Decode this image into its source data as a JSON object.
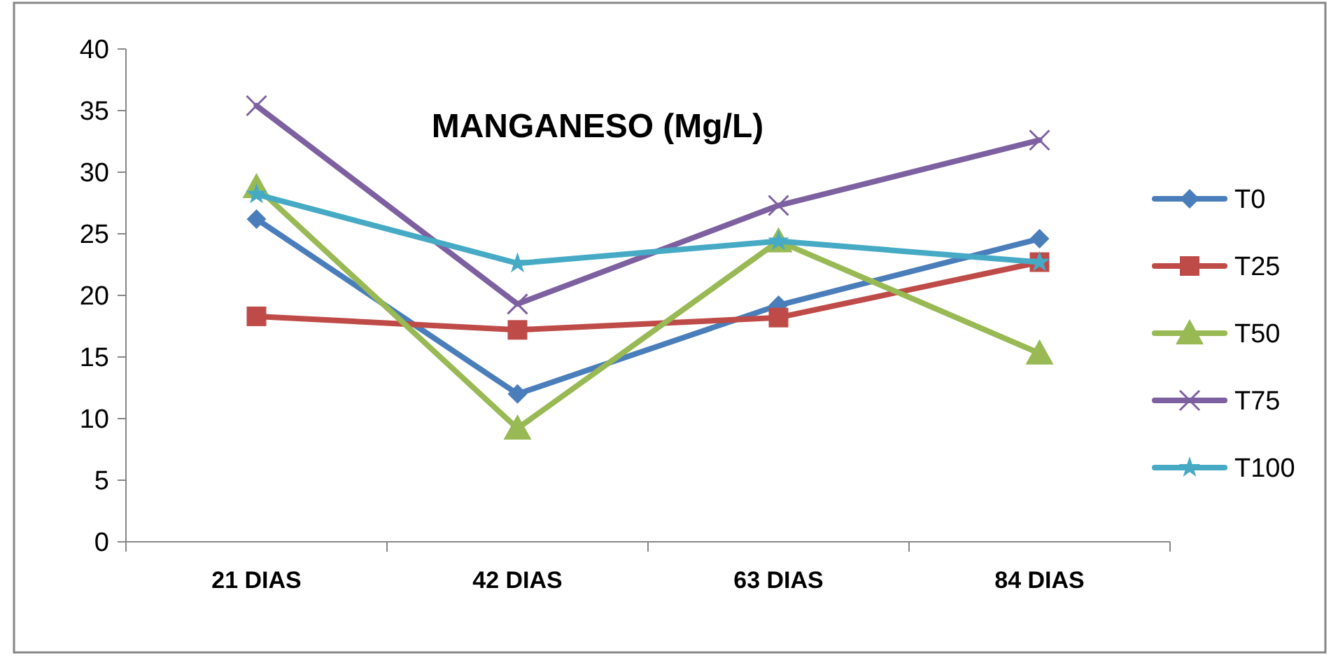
{
  "chart_data": {
    "type": "line",
    "title": "MANGANESO (Mg/L)",
    "categories": [
      "21 DIAS",
      "42 DIAS",
      "63 DIAS",
      "84 DIAS"
    ],
    "ylim": [
      0,
      40
    ],
    "yticks": [
      0,
      5,
      10,
      15,
      20,
      25,
      30,
      35,
      40
    ],
    "grid": false,
    "legend": "right",
    "line_style": "solid",
    "series": [
      {
        "name": "T0",
        "color": "#4a7ebb",
        "marker": "diamond",
        "values": [
          26.2,
          12.0,
          19.2,
          24.6
        ]
      },
      {
        "name": "T25",
        "color": "#be4b48",
        "marker": "square",
        "values": [
          18.3,
          17.2,
          18.2,
          22.7
        ]
      },
      {
        "name": "T50",
        "color": "#98b954",
        "marker": "triangle",
        "values": [
          28.8,
          9.2,
          24.4,
          15.3
        ]
      },
      {
        "name": "T75",
        "color": "#7d60a0",
        "marker": "cross",
        "values": [
          35.4,
          19.3,
          27.3,
          32.6
        ]
      },
      {
        "name": "T100",
        "color": "#46aac5",
        "marker": "star",
        "values": [
          28.2,
          22.6,
          24.4,
          22.7
        ]
      }
    ]
  }
}
